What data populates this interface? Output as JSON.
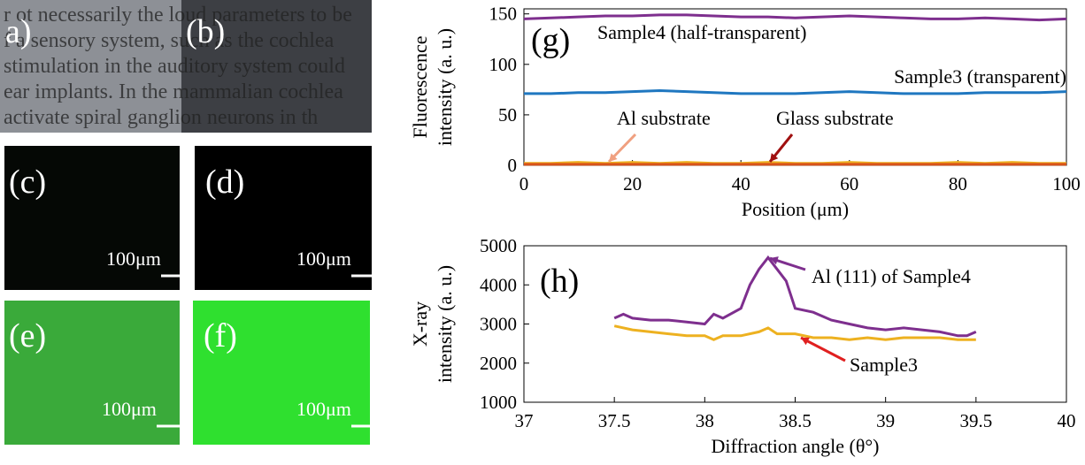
{
  "panels": {
    "labels": [
      "a)",
      "(b)",
      "(c)",
      "(d)",
      "(e)",
      "(f)"
    ],
    "scale_bar": "100μm",
    "photo_text": [
      "r ot necessarily the loud parameters to be",
      "f a sensory system, such as the cochlea",
      "stimulation in the auditory system could",
      "ear implants. In the mammalian cochlea",
      "activate spiral ganglion neurons in th"
    ]
  },
  "chart_data": [
    {
      "type": "line",
      "panel_label": "(g)",
      "xlabel": "Position (μm)",
      "ylabel": [
        "Fluorescence",
        "intensity (a. u.)"
      ],
      "x": [
        0,
        5,
        10,
        15,
        20,
        25,
        30,
        35,
        40,
        45,
        50,
        55,
        60,
        65,
        70,
        75,
        80,
        85,
        90,
        95,
        100
      ],
      "series": [
        {
          "name": "Sample4 (half-transparent)",
          "color": "#7e2f8e",
          "values": [
            145,
            146,
            147,
            148,
            148,
            149,
            149,
            148,
            147,
            147,
            146,
            147,
            148,
            147,
            146,
            145,
            145,
            146,
            145,
            144,
            145
          ]
        },
        {
          "name": "Sample3 (transparent)",
          "color": "#1f77c0",
          "values": [
            71,
            71,
            72,
            72,
            73,
            74,
            73,
            72,
            71,
            71,
            71,
            72,
            73,
            72,
            71,
            71,
            71,
            72,
            72,
            72,
            73
          ]
        },
        {
          "name": "Al substrate",
          "color": "#edb120",
          "values": [
            2,
            2,
            3,
            2,
            3,
            2,
            3,
            2,
            2,
            3,
            2,
            2,
            3,
            2,
            2,
            2,
            3,
            2,
            3,
            2,
            2
          ]
        },
        {
          "name": "Glass substrate",
          "color": "#d95319",
          "values": [
            1,
            1,
            1,
            1,
            1,
            1,
            1,
            1,
            1,
            1,
            1,
            1,
            1,
            1,
            1,
            1,
            1,
            1,
            1,
            1,
            1
          ]
        }
      ],
      "xlim": [
        0,
        100
      ],
      "xticks": [
        0,
        20,
        40,
        60,
        80,
        100
      ],
      "ylim": [
        0,
        155
      ],
      "yticks": [
        0,
        50,
        100,
        150
      ]
    },
    {
      "type": "line",
      "panel_label": "(h)",
      "xlabel": "Diffraction angle (θ°)",
      "ylabel": [
        "X-ray",
        "intensity (a. u.)"
      ],
      "series": [
        {
          "name": "Al (111) of Sample4",
          "color": "#7e2f8e",
          "x": [
            37.5,
            37.55,
            37.6,
            37.7,
            37.8,
            37.9,
            38.0,
            38.05,
            38.1,
            38.2,
            38.25,
            38.3,
            38.35,
            38.4,
            38.45,
            38.5,
            38.6,
            38.7,
            38.8,
            38.9,
            39.0,
            39.1,
            39.2,
            39.3,
            39.4,
            39.45,
            39.5
          ],
          "values": [
            3150,
            3250,
            3150,
            3100,
            3100,
            3050,
            3000,
            3250,
            3150,
            3400,
            4000,
            4400,
            4700,
            4400,
            4100,
            3400,
            3300,
            3100,
            3000,
            2900,
            2850,
            2900,
            2850,
            2800,
            2700,
            2700,
            2800
          ]
        },
        {
          "name": "Sample3",
          "color": "#edb120",
          "x": [
            37.5,
            37.6,
            37.7,
            37.8,
            37.9,
            38.0,
            38.05,
            38.1,
            38.2,
            38.3,
            38.35,
            38.4,
            38.5,
            38.6,
            38.7,
            38.8,
            38.9,
            39.0,
            39.1,
            39.2,
            39.3,
            39.4,
            39.5
          ],
          "values": [
            2950,
            2850,
            2800,
            2750,
            2700,
            2700,
            2600,
            2700,
            2700,
            2800,
            2900,
            2750,
            2750,
            2650,
            2650,
            2600,
            2650,
            2600,
            2650,
            2650,
            2650,
            2600,
            2600
          ]
        }
      ],
      "xlim": [
        37,
        40
      ],
      "xticks": [
        37,
        37.5,
        38,
        38.5,
        39,
        39.5,
        40
      ],
      "ylim": [
        1000,
        5000
      ],
      "yticks": [
        1000,
        2000,
        3000,
        4000,
        5000
      ]
    }
  ]
}
